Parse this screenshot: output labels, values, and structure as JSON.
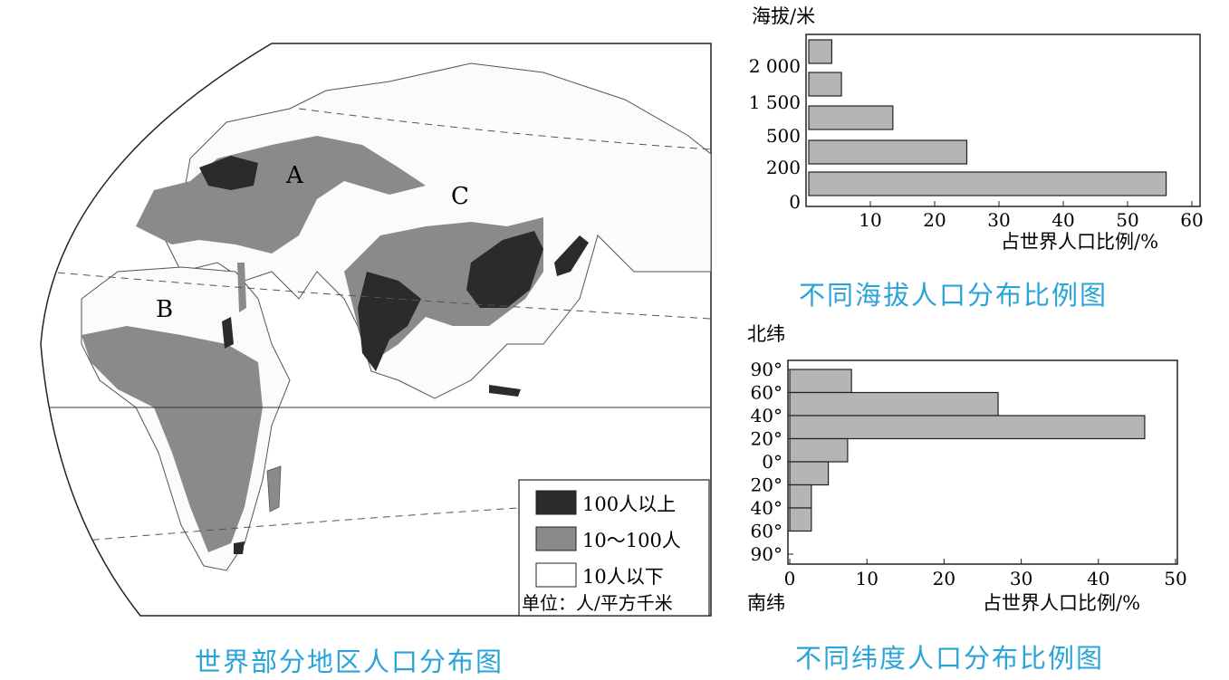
{
  "map": {
    "title": "世界部分地区人口分布图",
    "region_labels": [
      "A",
      "B",
      "C"
    ],
    "legend": {
      "items": [
        {
          "label": "100人以上",
          "color": "#2b2b2b"
        },
        {
          "label": "10～100人",
          "color": "#8a8a8a"
        },
        {
          "label": "10人以下",
          "color": "#ffffff"
        }
      ],
      "unit": "单位：人/平方千米"
    }
  },
  "chart_data": [
    {
      "type": "bar",
      "orientation": "horizontal",
      "title": "不同海拔人口分布比例图",
      "ylabel": "海拔/米",
      "xlabel": "占世界人口比例/%",
      "y_ticks": [
        "0",
        "200",
        "500",
        "1 500",
        "2 000"
      ],
      "categories": [
        "0-200",
        "200-500",
        "500-1 500",
        "1 500-2 000",
        ">2 000"
      ],
      "values": [
        56,
        25,
        13.5,
        5.5,
        4
      ],
      "x_ticks": [
        "10",
        "20",
        "30",
        "40",
        "50",
        "60"
      ],
      "xlim": [
        0,
        60
      ],
      "bar_color": "#b5b5b5"
    },
    {
      "type": "bar",
      "orientation": "horizontal",
      "title": "不同纬度人口分布比例图",
      "ylabel_top": "北纬",
      "ylabel_bottom": "南纬",
      "xlabel": "占世界人口比例/%",
      "y_ticks": [
        "90°",
        "60°",
        "40°",
        "20°",
        "0°",
        "20°",
        "40°",
        "60°",
        "90°"
      ],
      "categories": [
        "60°N-90°N",
        "40°N-60°N",
        "20°N-40°N",
        "0°-20°N",
        "0°-20°S",
        "20°S-40°S",
        "40°S-60°S",
        "60°S-90°S"
      ],
      "values": [
        8,
        27,
        46,
        7.5,
        5,
        2.8,
        2.8,
        0
      ],
      "x_ticks": [
        "0",
        "10",
        "20",
        "30",
        "40",
        "50"
      ],
      "xlim": [
        0,
        50
      ],
      "bar_color": "#b5b5b5"
    }
  ]
}
